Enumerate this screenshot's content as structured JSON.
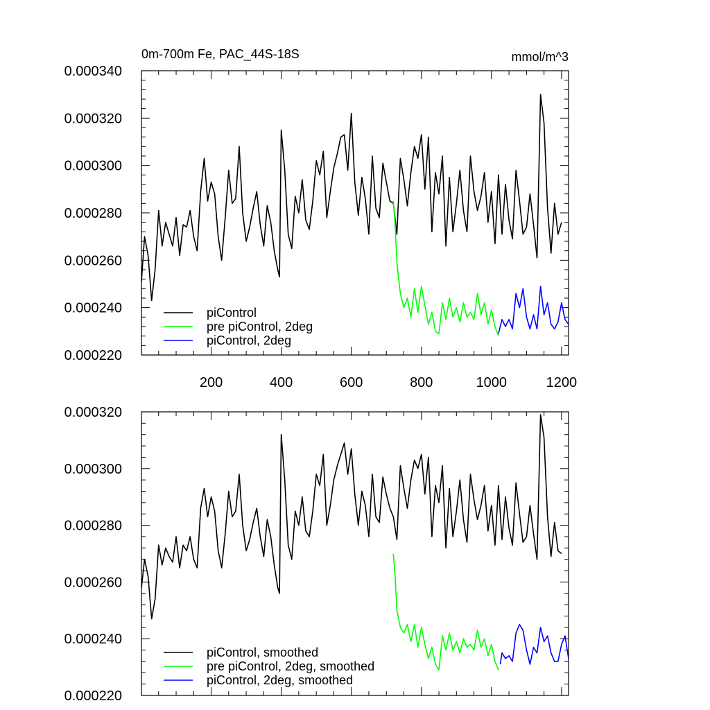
{
  "header": {
    "title": "0m-700m Fe, PAC_44S-18S",
    "units": "mmol/m^3"
  },
  "chart_data": [
    {
      "type": "line",
      "title": "0m-700m Fe, PAC_44S-18S",
      "units": "mmol/m^3",
      "xlim": [
        1,
        1220
      ],
      "ylim": [
        0.00022,
        0.00034
      ],
      "x_ticks": [
        200,
        400,
        600,
        800,
        1000,
        1200
      ],
      "x_tick_labels": [
        "200",
        "400",
        "600",
        "800",
        "1000",
        "1200"
      ],
      "y_ticks": [
        0.00022,
        0.00024,
        0.00026,
        0.00028,
        0.0003,
        0.00032,
        0.00034
      ],
      "y_tick_labels": [
        "0.000220",
        "0.000240",
        "0.000260",
        "0.000280",
        "0.000300",
        "0.000320",
        "0.000340"
      ],
      "legend_position": "bottom-left",
      "series": [
        {
          "name": "piControl",
          "color": "#000000",
          "x": [
            1,
            10,
            20,
            30,
            40,
            50,
            60,
            70,
            80,
            90,
            100,
            110,
            120,
            130,
            140,
            150,
            160,
            170,
            180,
            190,
            200,
            210,
            220,
            230,
            240,
            250,
            260,
            270,
            280,
            290,
            300,
            310,
            320,
            330,
            340,
            350,
            360,
            370,
            380,
            390,
            395,
            400,
            410,
            420,
            430,
            440,
            450,
            460,
            470,
            480,
            490,
            500,
            510,
            520,
            530,
            540,
            550,
            560,
            570,
            580,
            590,
            600,
            610,
            620,
            630,
            640,
            650,
            660,
            670,
            680,
            690,
            700,
            710,
            720,
            730,
            740,
            750,
            760,
            770,
            780,
            790,
            800,
            810,
            820,
            830,
            840,
            850,
            860,
            870,
            880,
            890,
            900,
            910,
            920,
            930,
            940,
            950,
            960,
            970,
            980,
            990,
            1000,
            1010,
            1020,
            1030,
            1040,
            1050,
            1060,
            1070,
            1080,
            1090,
            1100,
            1110,
            1120,
            1130,
            1140,
            1150,
            1160,
            1170,
            1180,
            1190,
            1200
          ],
          "y": [
            0.000251,
            0.00027,
            0.000262,
            0.000243,
            0.000256,
            0.000281,
            0.000266,
            0.000276,
            0.000271,
            0.000266,
            0.000278,
            0.000262,
            0.000275,
            0.000274,
            0.000281,
            0.00027,
            0.000264,
            0.000289,
            0.000303,
            0.000285,
            0.000293,
            0.000288,
            0.00027,
            0.00026,
            0.000278,
            0.000298,
            0.000284,
            0.000286,
            0.000308,
            0.00028,
            0.000268,
            0.000274,
            0.000282,
            0.000289,
            0.000275,
            0.000266,
            0.000283,
            0.000276,
            0.000264,
            0.000256,
            0.000253,
            0.000315,
            0.000298,
            0.000271,
            0.000265,
            0.000287,
            0.00028,
            0.000294,
            0.000277,
            0.000273,
            0.000285,
            0.000302,
            0.000296,
            0.000306,
            0.000278,
            0.000289,
            0.000299,
            0.000305,
            0.000312,
            0.000313,
            0.000298,
            0.000322,
            0.000293,
            0.000279,
            0.000295,
            0.000286,
            0.000271,
            0.000304,
            0.000282,
            0.000278,
            0.000301,
            0.000293,
            0.000285,
            0.000284,
            0.000271,
            0.000303,
            0.000294,
            0.000283,
            0.000297,
            0.000308,
            0.000303,
            0.000313,
            0.00029,
            0.000312,
            0.000272,
            0.000297,
            0.000288,
            0.000304,
            0.000266,
            0.000295,
            0.000272,
            0.000284,
            0.000298,
            0.000281,
            0.000272,
            0.000304,
            0.000289,
            0.000281,
            0.000287,
            0.000297,
            0.000276,
            0.000289,
            0.000267,
            0.000296,
            0.000271,
            0.000292,
            0.000277,
            0.000269,
            0.000298,
            0.000285,
            0.000271,
            0.000274,
            0.000288,
            0.000275,
            0.000261,
            0.00033,
            0.000318,
            0.000282,
            0.000263,
            0.000284,
            0.000271,
            0.000276
          ]
        },
        {
          "name": "pre piControl, 2deg",
          "color": "#00ff00",
          "x": [
            720,
            725,
            730,
            740,
            750,
            760,
            770,
            780,
            790,
            800,
            810,
            820,
            830,
            840,
            850,
            860,
            870,
            880,
            890,
            900,
            910,
            920,
            930,
            940,
            950,
            960,
            970,
            980,
            990,
            1000,
            1010,
            1020
          ],
          "y": [
            0.000285,
            0.000275,
            0.000259,
            0.000246,
            0.00024,
            0.000244,
            0.000236,
            0.000248,
            0.000238,
            0.000249,
            0.000241,
            0.000233,
            0.000238,
            0.00023,
            0.000229,
            0.000242,
            0.000235,
            0.000244,
            0.000236,
            0.00024,
            0.000234,
            0.000242,
            0.000236,
            0.000238,
            0.000235,
            0.000246,
            0.000237,
            0.000242,
            0.000233,
            0.000239,
            0.000232,
            0.000228
          ]
        },
        {
          "name": "piControl, 2deg",
          "color": "#0000ff",
          "x": [
            1020,
            1030,
            1040,
            1050,
            1060,
            1070,
            1080,
            1090,
            1100,
            1110,
            1120,
            1130,
            1140,
            1150,
            1160,
            1170,
            1180,
            1190,
            1200,
            1210,
            1220
          ],
          "y": [
            0.000229,
            0.000235,
            0.000232,
            0.000235,
            0.000231,
            0.000246,
            0.00024,
            0.000248,
            0.000236,
            0.000231,
            0.000237,
            0.000231,
            0.000249,
            0.000237,
            0.000242,
            0.000233,
            0.000231,
            0.000234,
            0.000242,
            0.000235,
            0.000233
          ]
        }
      ]
    },
    {
      "type": "line",
      "xlim": [
        1,
        1220
      ],
      "ylim": [
        0.00022,
        0.00032
      ],
      "x_ticks": [
        200,
        400,
        600,
        800,
        1000,
        1200
      ],
      "y_ticks": [
        0.00022,
        0.00024,
        0.00026,
        0.00028,
        0.0003,
        0.00032
      ],
      "y_tick_labels": [
        "0.000220",
        "0.000240",
        "0.000260",
        "0.000280",
        "0.000300",
        "0.000320"
      ],
      "legend_position": "bottom-left",
      "series": [
        {
          "name": "piControl, smoothed",
          "color": "#000000",
          "x": [
            1,
            10,
            20,
            30,
            40,
            50,
            60,
            70,
            80,
            90,
            100,
            110,
            120,
            130,
            140,
            150,
            160,
            170,
            180,
            190,
            200,
            210,
            220,
            230,
            240,
            250,
            260,
            270,
            280,
            290,
            300,
            310,
            320,
            330,
            340,
            350,
            360,
            370,
            380,
            390,
            395,
            400,
            410,
            420,
            430,
            440,
            450,
            460,
            470,
            480,
            490,
            500,
            510,
            520,
            530,
            540,
            550,
            560,
            570,
            580,
            590,
            600,
            610,
            620,
            630,
            640,
            650,
            660,
            670,
            680,
            690,
            700,
            710,
            720,
            730,
            740,
            750,
            760,
            770,
            780,
            790,
            800,
            810,
            820,
            830,
            840,
            850,
            860,
            870,
            880,
            890,
            900,
            910,
            920,
            930,
            940,
            950,
            960,
            970,
            980,
            990,
            1000,
            1010,
            1020,
            1030,
            1040,
            1050,
            1060,
            1070,
            1080,
            1090,
            1100,
            1110,
            1120,
            1130,
            1140,
            1150,
            1160,
            1170,
            1180,
            1190,
            1200
          ],
          "y": [
            0.000258,
            0.000268,
            0.000262,
            0.000247,
            0.000254,
            0.000273,
            0.000266,
            0.000272,
            0.000269,
            0.000267,
            0.000276,
            0.000265,
            0.000273,
            0.000271,
            0.000276,
            0.000268,
            0.000265,
            0.000286,
            0.000293,
            0.000283,
            0.00029,
            0.000285,
            0.000271,
            0.000265,
            0.000277,
            0.000292,
            0.000283,
            0.000285,
            0.000298,
            0.00028,
            0.000271,
            0.000275,
            0.000281,
            0.000286,
            0.000276,
            0.000269,
            0.000282,
            0.000276,
            0.000266,
            0.000258,
            0.000256,
            0.000312,
            0.000296,
            0.000273,
            0.000268,
            0.000285,
            0.00028,
            0.00029,
            0.000278,
            0.000276,
            0.000285,
            0.000298,
            0.000294,
            0.000305,
            0.00028,
            0.000287,
            0.000296,
            0.000301,
            0.000305,
            0.000309,
            0.000298,
            0.000307,
            0.000291,
            0.00028,
            0.000292,
            0.000287,
            0.000276,
            0.000298,
            0.000283,
            0.000281,
            0.000297,
            0.000291,
            0.000286,
            0.000283,
            0.000275,
            0.000301,
            0.000293,
            0.000286,
            0.000296,
            0.000303,
            0.0003,
            0.000305,
            0.000291,
            0.000304,
            0.000276,
            0.000294,
            0.000288,
            0.000301,
            0.000272,
            0.000293,
            0.000276,
            0.000285,
            0.000296,
            0.000282,
            0.000274,
            0.000298,
            0.000289,
            0.000282,
            0.000287,
            0.000294,
            0.000278,
            0.000287,
            0.000273,
            0.000294,
            0.000275,
            0.00029,
            0.000279,
            0.000273,
            0.000295,
            0.000284,
            0.000274,
            0.000276,
            0.000287,
            0.000277,
            0.000268,
            0.000319,
            0.000311,
            0.000283,
            0.000269,
            0.000281,
            0.000271,
            0.00027
          ]
        },
        {
          "name": "pre piControl, 2deg, smoothed",
          "color": "#00ff00",
          "x": [
            720,
            725,
            730,
            740,
            750,
            760,
            770,
            780,
            790,
            800,
            810,
            820,
            830,
            840,
            850,
            860,
            870,
            880,
            890,
            900,
            910,
            920,
            930,
            940,
            950,
            960,
            970,
            980,
            990,
            1000,
            1010,
            1020
          ],
          "y": [
            0.00027,
            0.000262,
            0.00025,
            0.000244,
            0.000242,
            0.000245,
            0.000239,
            0.000245,
            0.000237,
            0.000244,
            0.000238,
            0.000233,
            0.000237,
            0.000231,
            0.000229,
            0.000241,
            0.000236,
            0.000242,
            0.000236,
            0.000239,
            0.000235,
            0.00024,
            0.000237,
            0.000238,
            0.000236,
            0.000243,
            0.000237,
            0.00024,
            0.000234,
            0.000238,
            0.000232,
            0.000229
          ]
        },
        {
          "name": "piControl, 2deg, smoothed",
          "color": "#0000ff",
          "x": [
            1025,
            1030,
            1040,
            1050,
            1060,
            1070,
            1080,
            1090,
            1100,
            1110,
            1120,
            1130,
            1140,
            1150,
            1160,
            1170,
            1180,
            1190,
            1200,
            1210,
            1220
          ],
          "y": [
            0.000231,
            0.000235,
            0.000233,
            0.000234,
            0.000232,
            0.000242,
            0.000245,
            0.000243,
            0.000236,
            0.000231,
            0.000237,
            0.000235,
            0.000244,
            0.000239,
            0.000241,
            0.000235,
            0.000232,
            0.000232,
            0.000238,
            0.000241,
            0.000233
          ]
        }
      ]
    }
  ]
}
